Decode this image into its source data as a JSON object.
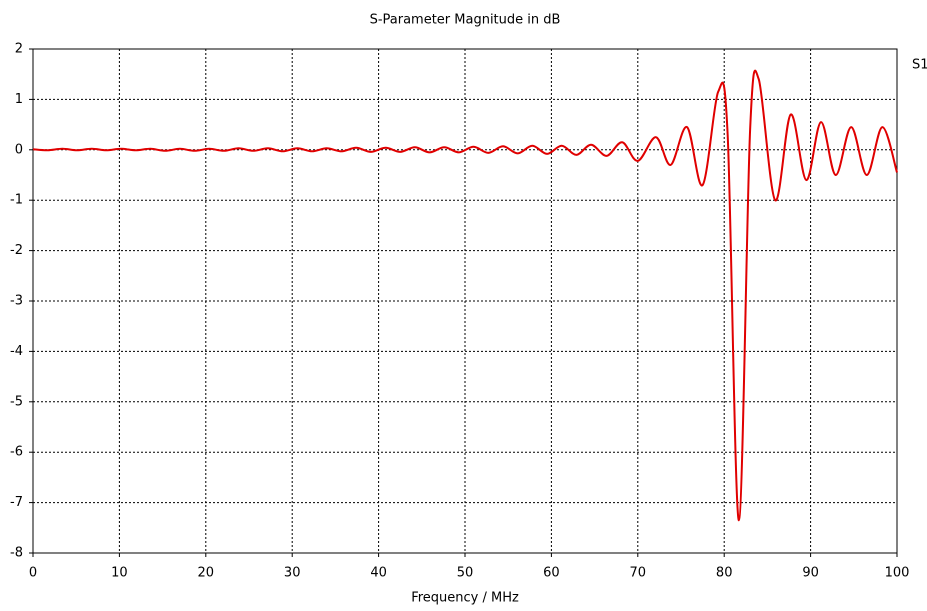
{
  "chart_data": {
    "type": "line",
    "title": "S-Parameter Magnitude in dB",
    "x_label": "Frequency / MHz",
    "x": [
      0,
      1.7,
      3.4,
      5.1,
      6.8,
      8.5,
      10.2,
      11.9,
      13.6,
      15.3,
      17,
      18.7,
      20.4,
      22.1,
      23.8,
      25.5,
      27.2,
      28.9,
      30.6,
      32.3,
      34,
      35.7,
      37.4,
      39.1,
      40.8,
      42.5,
      44.2,
      45.9,
      47.6,
      49.3,
      51,
      52.7,
      54.4,
      56.1,
      57.8,
      59.5,
      61.2,
      62.9,
      64.6,
      66.4,
      68.2,
      70,
      72.1,
      73.8,
      75.7,
      77.5,
      79.3,
      80.4,
      81.7,
      83,
      84,
      85.9,
      87.7,
      89.5,
      91.2,
      92.9,
      94.7,
      96.5,
      98.3,
      100
    ],
    "series": [
      {
        "name": "S1",
        "color": "#e00000",
        "values": [
          0.01,
          -0.01,
          0.02,
          -0.01,
          0.02,
          -0.01,
          0.02,
          -0.01,
          0.02,
          -0.02,
          0.02,
          -0.02,
          0.02,
          -0.02,
          0.03,
          -0.02,
          0.03,
          -0.03,
          0.03,
          -0.03,
          0.03,
          -0.03,
          0.04,
          -0.04,
          0.04,
          -0.04,
          0.05,
          -0.05,
          0.05,
          -0.05,
          0.06,
          -0.06,
          0.07,
          -0.07,
          0.08,
          -0.08,
          0.08,
          -0.1,
          0.1,
          -0.12,
          0.15,
          -0.22,
          0.25,
          -0.3,
          0.45,
          -0.7,
          1.15,
          0.3,
          -7.35,
          0.4,
          1.4,
          -1,
          0.7,
          -0.6,
          0.55,
          -0.5,
          0.45,
          -0.5,
          0.45,
          -0.45
        ]
      }
    ],
    "xlim": [
      0,
      100
    ],
    "xticks": [
      0,
      10,
      20,
      30,
      40,
      50,
      60,
      70,
      80,
      90,
      100
    ],
    "ylim": [
      -8,
      2
    ],
    "yticks": [
      -8,
      -7,
      -6,
      -5,
      -4,
      -3,
      -2,
      -1,
      0,
      1,
      2
    ],
    "grid": true,
    "legend": "right"
  }
}
